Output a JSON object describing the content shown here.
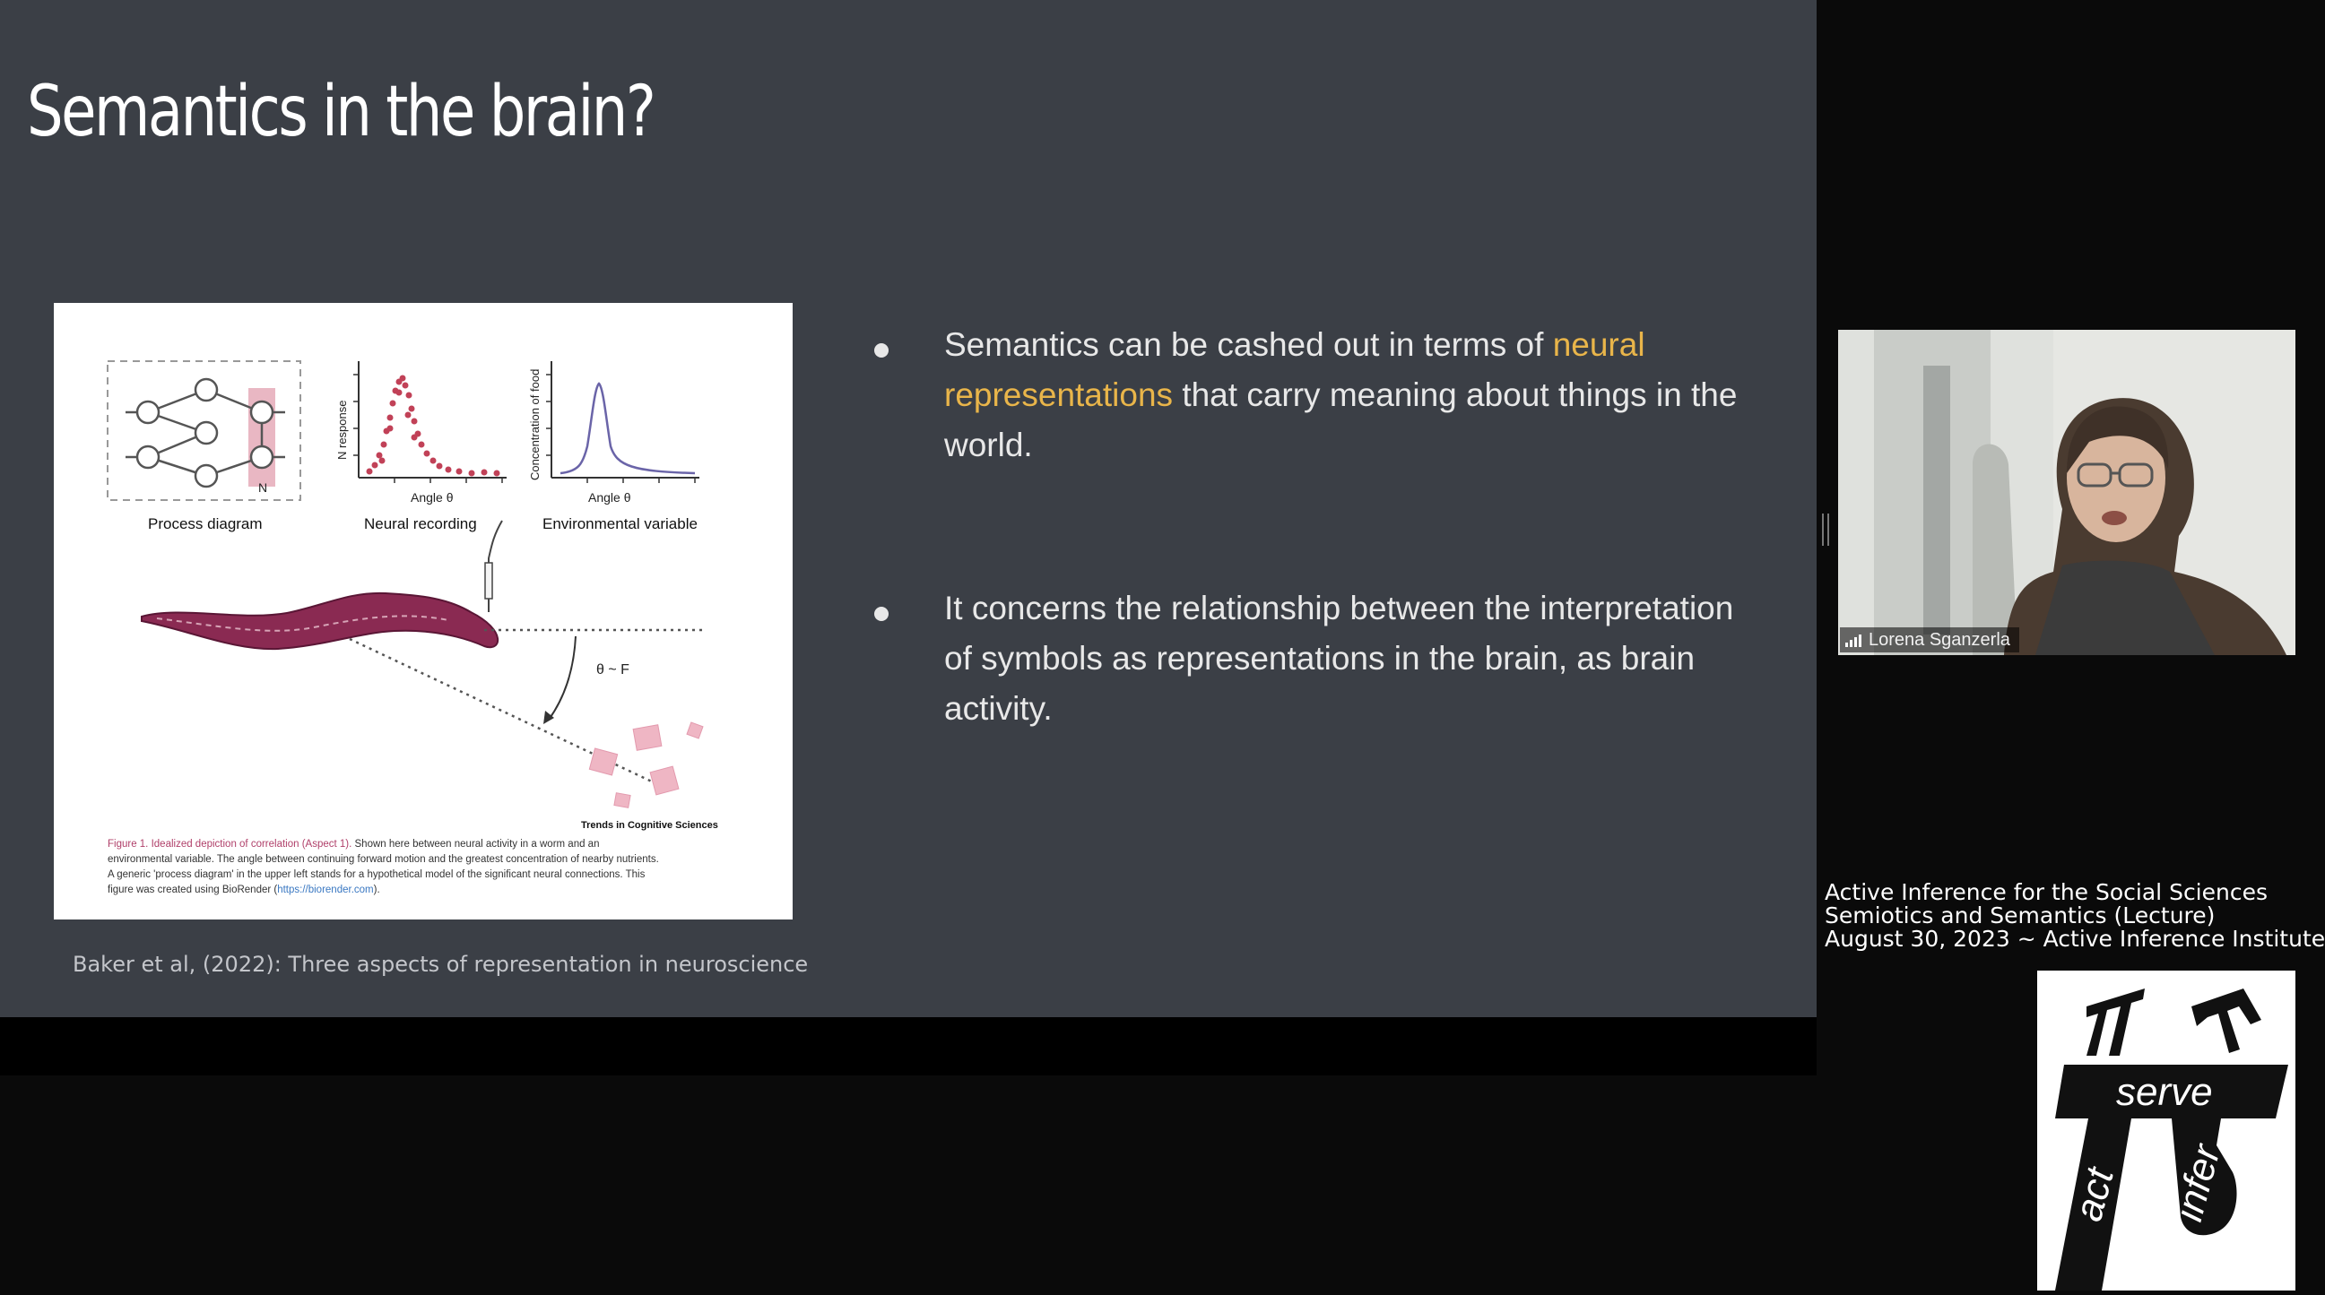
{
  "slide": {
    "title": "Semantics in the brain?",
    "bullets": [
      {
        "pre": "Semantics can be cashed out in terms of ",
        "highlight": "neural representations",
        "post": " that carry meaning about things in the world."
      },
      {
        "text": "It concerns the relationship between the interpretation of symbols as representations in the brain, as brain activity."
      }
    ],
    "highlight_color": "#e9b54a",
    "citation": "Baker et al, (2022):  Three aspects of representation in neuroscience",
    "figure": {
      "panel_labels": [
        "Process diagram",
        "Neural recording",
        "Environmental variable"
      ],
      "ylabel_neural": "N response",
      "ylabel_env": "Concentration of food",
      "xlabel": "Angle θ",
      "node_label": "N",
      "angle_label": "θ ~ F",
      "journal": "Trends in Cognitive Sciences",
      "caption_title": "Figure 1. Idealized depiction of correlation (Aspect 1).",
      "caption_lines": [
        " Shown here between neural activity in a worm and an",
        "environmental variable. The angle between continuing forward motion and the greatest concentration of nearby nutrients.",
        "A generic 'process diagram' in the upper left stands for a hypothetical model of the significant neural connections. This",
        "figure was created using BioRender ("
      ],
      "caption_link": "https://biorender.com",
      "caption_end": ")."
    }
  },
  "participant": {
    "name": "Lorena Sganzerla"
  },
  "overlay": {
    "line1": "Active Inference for the Social Sciences",
    "line2": "Semiotics and Semantics (Lecture)",
    "line3": "August 30, 2023 ~ Active Inference Institute"
  },
  "logo": {
    "top_word": "serve",
    "left_word": "act",
    "right_word": "infer"
  }
}
